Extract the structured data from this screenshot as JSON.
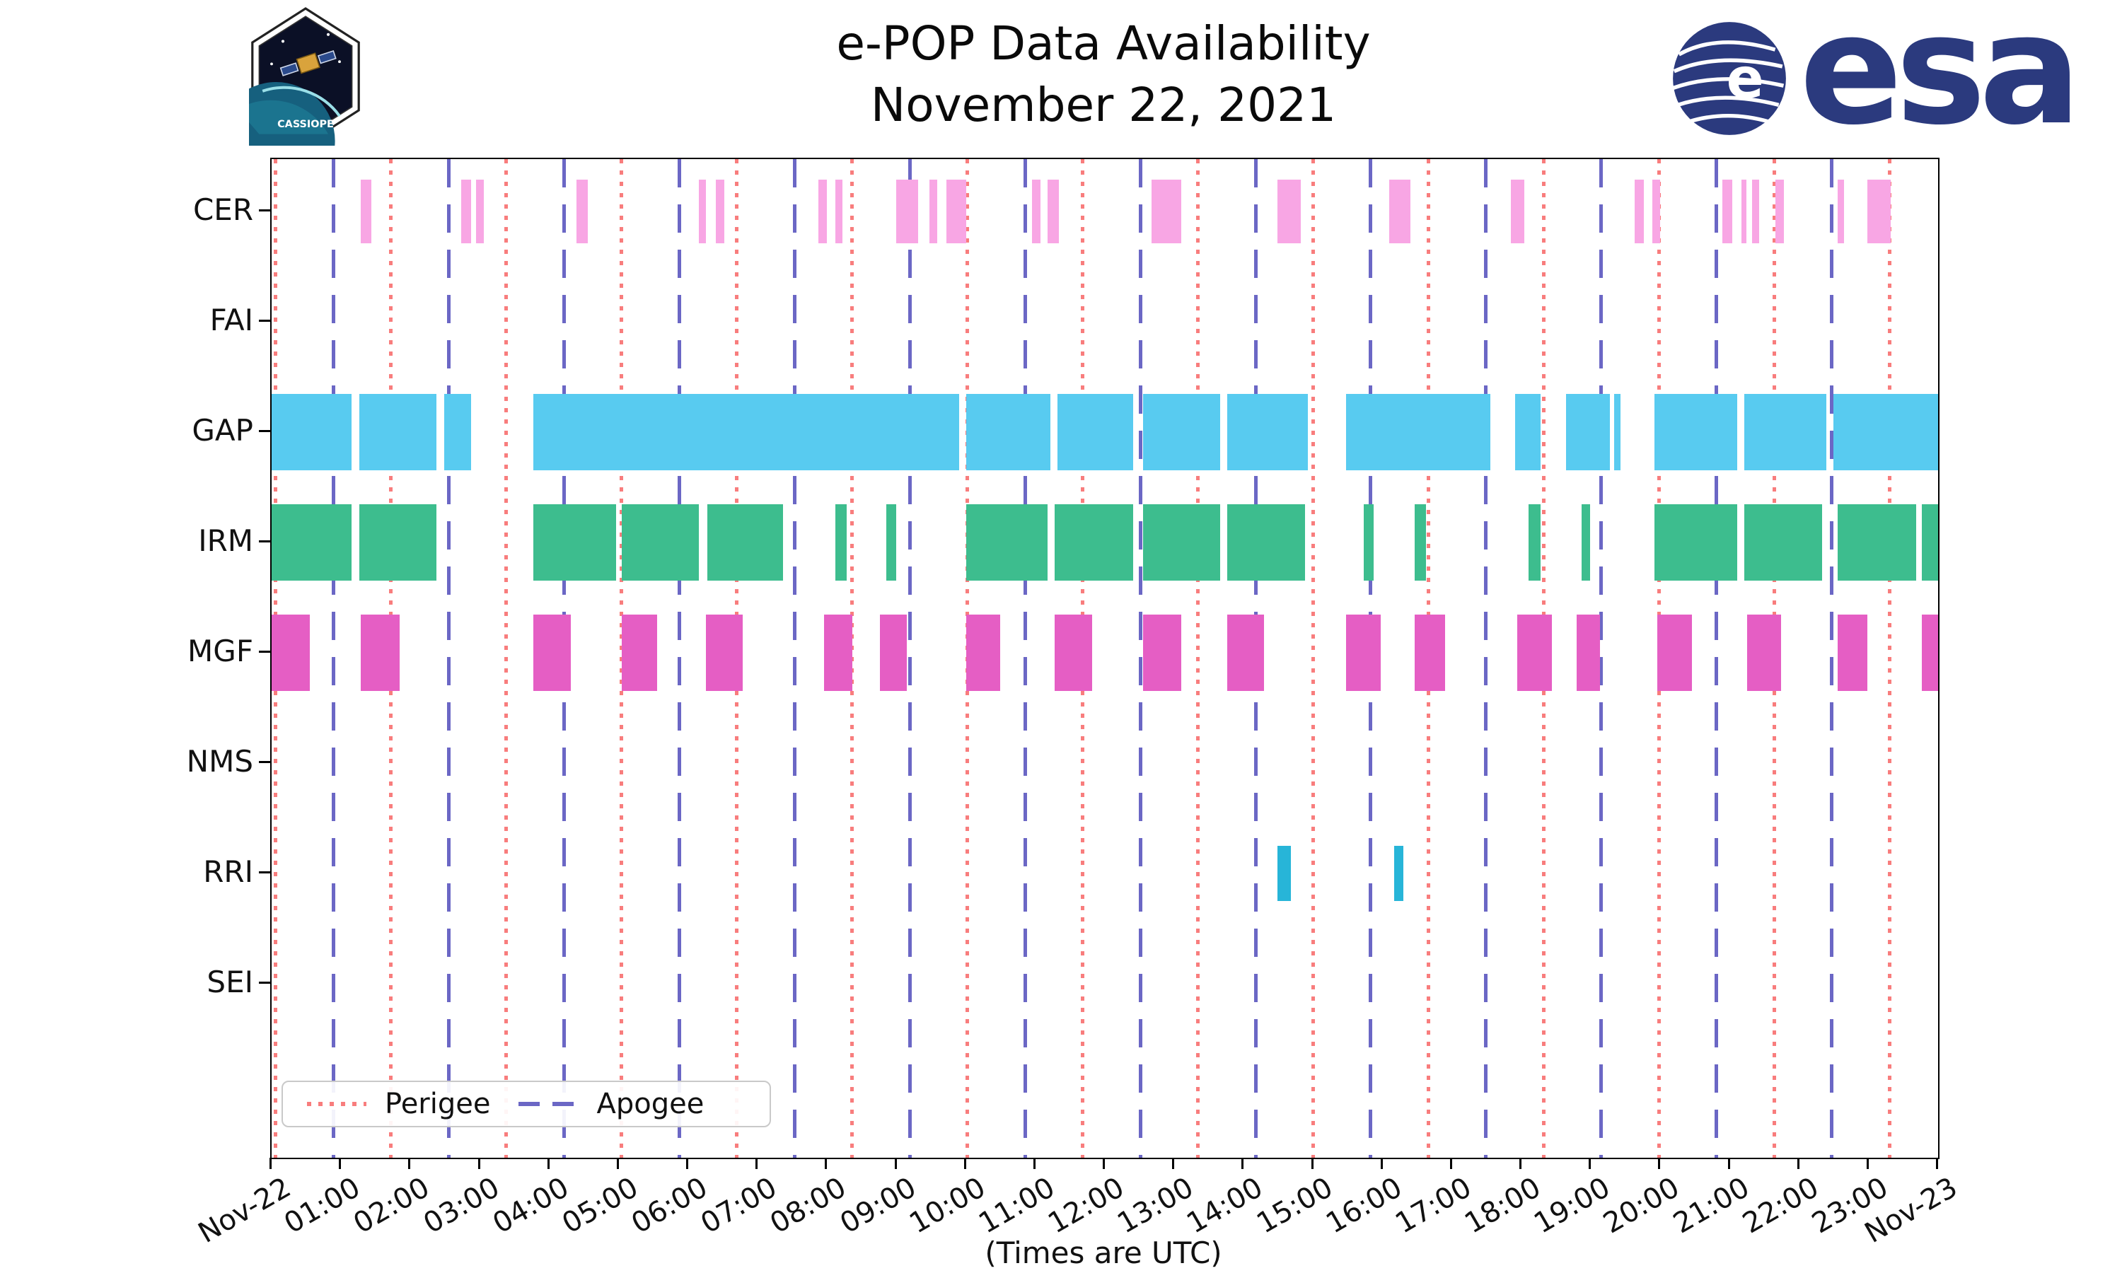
{
  "header": {
    "title_line1": "e-POP Data Availability",
    "title_line2": "November 22, 2021",
    "cassiope_label": "CASSIOPE",
    "esa_label": "esa"
  },
  "chart_data": {
    "type": "timeline",
    "title": "e-POP Data Availability — November 22, 2021",
    "xlabel": "(Times are UTC)",
    "x_range_hours": [
      0,
      24
    ],
    "x_tick_labels": [
      "Nov-22",
      "01:00",
      "02:00",
      "03:00",
      "04:00",
      "05:00",
      "06:00",
      "07:00",
      "08:00",
      "09:00",
      "10:00",
      "11:00",
      "12:00",
      "13:00",
      "14:00",
      "15:00",
      "16:00",
      "17:00",
      "18:00",
      "19:00",
      "20:00",
      "21:00",
      "22:00",
      "23:00",
      "Nov-23"
    ],
    "tick_rotation_deg": 30,
    "rows": [
      {
        "label": "CER",
        "color": "#f8a6e4",
        "intervals": [
          [
            1.28,
            1.44
          ],
          [
            2.73,
            2.87
          ],
          [
            2.94,
            3.06
          ],
          [
            4.39,
            4.55
          ],
          [
            6.15,
            6.25
          ],
          [
            6.4,
            6.52
          ],
          [
            7.87,
            8.0
          ],
          [
            8.12,
            8.22
          ],
          [
            8.99,
            9.31
          ],
          [
            9.47,
            9.59
          ],
          [
            9.72,
            10.0
          ],
          [
            10.95,
            11.07
          ],
          [
            11.17,
            11.34
          ],
          [
            12.67,
            13.1
          ],
          [
            14.49,
            14.82
          ],
          [
            16.09,
            16.4
          ],
          [
            17.85,
            18.04
          ],
          [
            19.63,
            19.76
          ],
          [
            19.88,
            20.0
          ],
          [
            20.89,
            21.04
          ],
          [
            21.17,
            21.24
          ],
          [
            21.32,
            21.42
          ],
          [
            21.66,
            21.78
          ],
          [
            22.55,
            22.65
          ],
          [
            22.98,
            23.32
          ]
        ]
      },
      {
        "label": "FAI",
        "color": "#c9b6f0",
        "intervals": []
      },
      {
        "label": "GAP",
        "color": "#58cbf0",
        "intervals": [
          [
            0.0,
            1.15
          ],
          [
            1.26,
            2.37
          ],
          [
            2.49,
            2.87
          ],
          [
            3.77,
            9.9
          ],
          [
            10.0,
            11.22
          ],
          [
            11.32,
            12.41
          ],
          [
            12.55,
            13.66
          ],
          [
            13.76,
            14.92
          ],
          [
            15.47,
            17.55
          ],
          [
            17.91,
            18.28
          ],
          [
            18.64,
            19.27
          ],
          [
            19.33,
            19.43
          ],
          [
            19.92,
            21.11
          ],
          [
            21.21,
            22.39
          ],
          [
            22.49,
            24.0
          ]
        ]
      },
      {
        "label": "IRM",
        "color": "#3dbd8e",
        "intervals": [
          [
            0.0,
            1.15
          ],
          [
            1.26,
            2.37
          ],
          [
            3.77,
            4.96
          ],
          [
            5.04,
            6.15
          ],
          [
            6.28,
            7.37
          ],
          [
            8.12,
            8.28
          ],
          [
            8.85,
            8.99
          ],
          [
            10.0,
            11.17
          ],
          [
            11.28,
            12.41
          ],
          [
            12.55,
            13.66
          ],
          [
            13.76,
            14.88
          ],
          [
            15.73,
            15.87
          ],
          [
            16.46,
            16.62
          ],
          [
            18.1,
            18.28
          ],
          [
            18.87,
            18.99
          ],
          [
            19.92,
            21.11
          ],
          [
            21.21,
            22.33
          ],
          [
            22.55,
            23.68
          ],
          [
            23.77,
            24.0
          ]
        ]
      },
      {
        "label": "MGF",
        "color": "#e55ec4",
        "intervals": [
          [
            0.0,
            0.55
          ],
          [
            1.28,
            1.84
          ],
          [
            3.77,
            4.31
          ],
          [
            5.04,
            5.55
          ],
          [
            6.25,
            6.78
          ],
          [
            7.96,
            8.36
          ],
          [
            8.76,
            9.15
          ],
          [
            10.0,
            10.49
          ],
          [
            11.28,
            11.82
          ],
          [
            12.55,
            13.1
          ],
          [
            13.76,
            14.29
          ],
          [
            15.47,
            15.97
          ],
          [
            16.46,
            16.9
          ],
          [
            17.94,
            18.44
          ],
          [
            18.79,
            19.13
          ],
          [
            19.96,
            20.45
          ],
          [
            21.25,
            21.74
          ],
          [
            22.55,
            22.98
          ],
          [
            23.77,
            24.0
          ]
        ]
      },
      {
        "label": "NMS",
        "color": "#f0c060",
        "intervals": []
      },
      {
        "label": "RRI",
        "color": "#27b5d8",
        "intervals": [
          [
            14.49,
            14.68
          ],
          [
            16.17,
            16.3
          ]
        ]
      },
      {
        "label": "SEI",
        "color": "#b0b0b0",
        "intervals": []
      }
    ],
    "events": {
      "perigee": {
        "label": "Perigee",
        "color": "#f87d7d",
        "style": "dotted",
        "times": [
          0.06,
          1.72,
          3.38,
          5.04,
          6.7,
          8.36,
          10.02,
          11.68,
          13.34,
          15.0,
          16.66,
          18.32,
          19.98,
          21.64,
          23.3
        ]
      },
      "apogee": {
        "label": "Apogee",
        "color": "#6b67c5",
        "style": "dashed",
        "times": [
          0.89,
          2.55,
          4.21,
          5.87,
          7.53,
          9.19,
          10.85,
          12.51,
          14.17,
          15.83,
          17.49,
          19.15,
          20.81,
          22.47
        ]
      }
    },
    "legend_position": "lower left"
  }
}
